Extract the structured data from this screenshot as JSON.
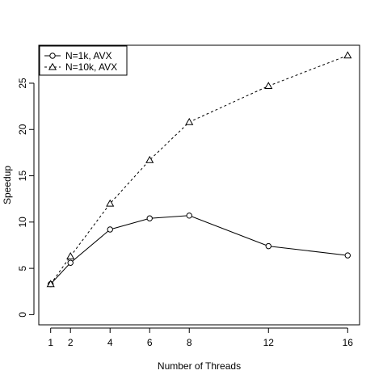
{
  "chart_data": {
    "type": "line",
    "xlabel": "Number of Threads",
    "ylabel": "Speedup",
    "x": [
      1,
      2,
      4,
      6,
      8,
      12,
      16
    ],
    "xticks": [
      1,
      2,
      4,
      6,
      8,
      12,
      16
    ],
    "yticks": [
      0,
      5,
      10,
      15,
      20,
      25
    ],
    "xlim": [
      0.4,
      16.6
    ],
    "ylim": [
      -1.1,
      29.1
    ],
    "grid": false,
    "legend_position": "top-left",
    "series": [
      {
        "name": "N=1k, AVX",
        "marker": "circle",
        "line": "solid",
        "values": [
          3.3,
          5.6,
          9.2,
          10.4,
          10.7,
          7.4,
          6.4
        ]
      },
      {
        "name": "N=10k, AVX",
        "marker": "triangle",
        "line": "dashed",
        "values": [
          3.3,
          6.3,
          12.0,
          16.7,
          20.8,
          24.7,
          28.0
        ]
      }
    ]
  }
}
